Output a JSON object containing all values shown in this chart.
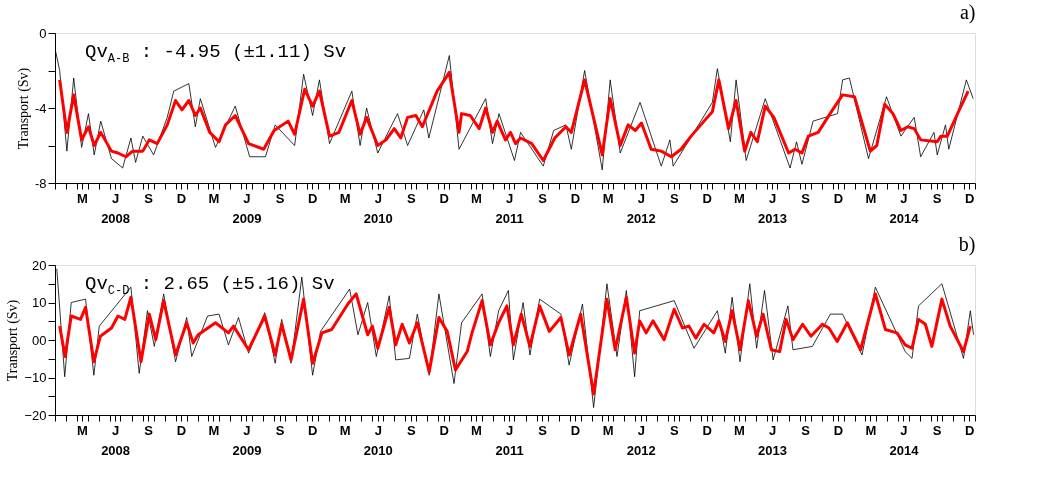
{
  "chart_data": [
    {
      "type": "line",
      "title": "a)",
      "ylabel": "Transport (Sv)",
      "annotations": [
        "Qv$_{A-B}$ : -4.95 (±1.11) Sv"
      ],
      "xlim": [
        "2008-01-01",
        "2015-01-01"
      ],
      "ylim": [
        -8,
        0
      ],
      "yticks": [
        0,
        {
          "value": -2,
          "label": null
        },
        -4,
        {
          "value": -6,
          "label": null
        },
        -8
      ],
      "xticks": [
        {
          "value": "2008-01",
          "label": null
        },
        {
          "value": "2008-02",
          "label": null
        },
        {
          "value": "2008-03",
          "label": null
        },
        {
          "value": "2008-03-16",
          "label": "M"
        },
        {
          "value": "2008-04",
          "label": null
        },
        {
          "value": "2008-05",
          "label": null
        },
        {
          "value": "2008-06",
          "label": null
        },
        {
          "value": "2008-06-16",
          "label": "J\n2008"
        },
        {
          "value": "2008-07",
          "label": null
        },
        {
          "value": "2008-08",
          "label": null
        },
        {
          "value": "2008-09",
          "label": null
        },
        {
          "value": "2008-09-16",
          "label": "S"
        },
        {
          "value": "2008-10",
          "label": null
        },
        {
          "value": "2008-11",
          "label": null
        },
        {
          "value": "2008-12",
          "label": null
        },
        {
          "value": "2008-12-16",
          "label": "D"
        },
        {
          "value": "2009-01",
          "label": null
        },
        {
          "value": "2009-02",
          "label": null
        },
        {
          "value": "2009-03",
          "label": null
        },
        {
          "value": "2009-03-16",
          "label": "M"
        },
        {
          "value": "2009-04",
          "label": null
        },
        {
          "value": "2009-05",
          "label": null
        },
        {
          "value": "2009-06",
          "label": null
        },
        {
          "value": "2009-06-16",
          "label": "J\n2009"
        },
        {
          "value": "2009-07",
          "label": null
        },
        {
          "value": "2009-08",
          "label": null
        },
        {
          "value": "2009-09",
          "label": null
        },
        {
          "value": "2009-09-16",
          "label": "S"
        },
        {
          "value": "2009-10",
          "label": null
        },
        {
          "value": "2009-11",
          "label": null
        },
        {
          "value": "2009-12",
          "label": null
        },
        {
          "value": "2009-12-16",
          "label": "D"
        },
        {
          "value": "2010-01",
          "label": null
        },
        {
          "value": "2010-02",
          "label": null
        },
        {
          "value": "2010-03",
          "label": null
        },
        {
          "value": "2010-03-16",
          "label": "M"
        },
        {
          "value": "2010-04",
          "label": null
        },
        {
          "value": "2010-05",
          "label": null
        },
        {
          "value": "2010-06",
          "label": null
        },
        {
          "value": "2010-06-16",
          "label": "J\n2010"
        },
        {
          "value": "2010-07",
          "label": null
        },
        {
          "value": "2010-08",
          "label": null
        },
        {
          "value": "2010-09",
          "label": null
        },
        {
          "value": "2010-09-16",
          "label": "S"
        },
        {
          "value": "2010-10",
          "label": null
        },
        {
          "value": "2010-11",
          "label": null
        },
        {
          "value": "2010-12",
          "label": null
        },
        {
          "value": "2010-12-16",
          "label": "D"
        },
        {
          "value": "2011-01",
          "label": null
        },
        {
          "value": "2011-02",
          "label": null
        },
        {
          "value": "2011-03",
          "label": null
        },
        {
          "value": "2011-03-16",
          "label": "M"
        },
        {
          "value": "2011-04",
          "label": null
        },
        {
          "value": "2011-05",
          "label": null
        },
        {
          "value": "2011-06",
          "label": null
        },
        {
          "value": "2011-06-16",
          "label": "J\n2011"
        },
        {
          "value": "2011-07",
          "label": null
        },
        {
          "value": "2011-08",
          "label": null
        },
        {
          "value": "2011-09",
          "label": null
        },
        {
          "value": "2011-09-16",
          "label": "S"
        },
        {
          "value": "2011-10",
          "label": null
        },
        {
          "value": "2011-11",
          "label": null
        },
        {
          "value": "2011-12",
          "label": null
        },
        {
          "value": "2011-12-16",
          "label": "D"
        },
        {
          "value": "2012-01",
          "label": null
        },
        {
          "value": "2012-02",
          "label": null
        },
        {
          "value": "2012-03",
          "label": null
        },
        {
          "value": "2012-03-16",
          "label": "M"
        },
        {
          "value": "2012-04",
          "label": null
        },
        {
          "value": "2012-05",
          "label": null
        },
        {
          "value": "2012-06",
          "label": null
        },
        {
          "value": "2012-06-16",
          "label": "J\n2012"
        },
        {
          "value": "2012-07",
          "label": null
        },
        {
          "value": "2012-08",
          "label": null
        },
        {
          "value": "2012-09",
          "label": null
        },
        {
          "value": "2012-09-16",
          "label": "S"
        },
        {
          "value": "2012-10",
          "label": null
        },
        {
          "value": "2012-11",
          "label": null
        },
        {
          "value": "2012-12",
          "label": null
        },
        {
          "value": "2012-12-16",
          "label": "D"
        },
        {
          "value": "2013-01",
          "label": null
        },
        {
          "value": "2013-02",
          "label": null
        },
        {
          "value": "2013-03",
          "label": null
        },
        {
          "value": "2013-03-16",
          "label": "M"
        },
        {
          "value": "2013-04",
          "label": null
        },
        {
          "value": "2013-05",
          "label": null
        },
        {
          "value": "2013-06",
          "label": null
        },
        {
          "value": "2013-06-16",
          "label": "J\n2013"
        },
        {
          "value": "2013-07",
          "label": null
        },
        {
          "value": "2013-08",
          "label": null
        },
        {
          "value": "2013-09",
          "label": null
        },
        {
          "value": "2013-09-16",
          "label": "S"
        },
        {
          "value": "2013-10",
          "label": null
        },
        {
          "value": "2013-11",
          "label": null
        },
        {
          "value": "2013-12",
          "label": null
        },
        {
          "value": "2013-12-16",
          "label": "D"
        },
        {
          "value": "2014-01",
          "label": null
        },
        {
          "value": "2014-02",
          "label": null
        },
        {
          "value": "2014-03",
          "label": null
        },
        {
          "value": "2014-03-16",
          "label": "M"
        },
        {
          "value": "2014-04",
          "label": null
        },
        {
          "value": "2014-05",
          "label": null
        },
        {
          "value": "2014-06",
          "label": null
        },
        {
          "value": "2014-06-16",
          "label": "J\n2014"
        },
        {
          "value": "2014-07",
          "label": null
        },
        {
          "value": "2014-08",
          "label": null
        },
        {
          "value": "2014-09",
          "label": null
        },
        {
          "value": "2014-09-16",
          "label": "S"
        },
        {
          "value": "2014-10",
          "label": null
        },
        {
          "value": "2014-11",
          "label": null
        },
        {
          "value": "2014-12",
          "label": null
        },
        {
          "value": "2014-12-16",
          "label": "D"
        },
        {
          "value": "2015-01",
          "label": null
        }
      ],
      "series": [
        {
          "color": "#000000",
          "x": [
            "2008-01-03",
            "2008-01-14",
            "2008-02-03",
            "2008-02-22",
            "2008-03-15",
            "2008-04-03",
            "2008-04-19",
            "2008-05-07",
            "2008-06-06",
            "2008-07-07",
            "2008-07-30",
            "2008-08-12",
            "2008-09-01",
            "2008-10-01",
            "2008-11-08",
            "2008-11-26",
            "2009-01-07",
            "2009-01-25",
            "2009-02-08",
            "2009-03-22",
            "2009-05-16",
            "2009-06-25",
            "2009-08-08",
            "2009-09-04",
            "2009-10-28",
            "2009-11-22",
            "2009-12-17",
            "2010-01-05",
            "2010-02-02",
            "2010-04-05",
            "2010-04-28",
            "2010-05-16",
            "2010-06-16",
            "2010-08-10",
            "2010-09-07",
            "2010-10-22",
            "2010-11-05",
            "2011-01-01",
            "2011-01-28",
            "2011-04-12",
            "2011-05-01",
            "2011-05-19",
            "2011-07-01",
            "2011-07-18",
            "2011-09-19",
            "2011-10-18",
            "2011-11-21",
            "2011-12-06",
            "2012-01-12",
            "2012-03-01",
            "2012-03-23",
            "2012-04-20",
            "2012-06-14",
            "2012-08-12",
            "2012-09-05",
            "2012-09-14",
            "2013-01-01",
            "2013-01-15",
            "2013-02-20",
            "2013-03-08",
            "2013-04-05",
            "2013-05-28",
            "2013-08-05",
            "2013-08-23",
            "2013-09-07",
            "2013-10-08",
            "2013-12-15",
            "2013-12-29",
            "2014-01-17",
            "2014-03-11",
            "2014-04-30",
            "2014-06-09",
            "2014-07-16",
            "2014-08-03",
            "2014-09-09",
            "2014-09-18",
            "2014-10-11",
            "2014-10-20",
            "2014-12-08",
            "2014-12-27"
          ],
          "values": [
            -1.0,
            -2.0,
            -6.3,
            -2.4,
            -6.1,
            -4.3,
            -6.5,
            -4.7,
            -6.7,
            -7.2,
            -5.6,
            -6.9,
            -5.5,
            -6.5,
            -4.5,
            -3.1,
            -2.7,
            -5.0,
            -3.5,
            -6.1,
            -3.9,
            -6.6,
            -6.6,
            -4.9,
            -6.0,
            -2.2,
            -4.4,
            -2.5,
            -5.9,
            -3.1,
            -6.0,
            -4.0,
            -6.4,
            -4.3,
            -6.0,
            -4.1,
            -5.6,
            -1.2,
            -6.2,
            -3.5,
            -5.9,
            -4.3,
            -6.8,
            -5.3,
            -7.1,
            -5.2,
            -4.9,
            -6.2,
            -2.0,
            -7.3,
            -2.5,
            -6.4,
            -3.7,
            -7.1,
            -5.7,
            -7.1,
            -3.7,
            -1.9,
            -5.8,
            -2.5,
            -6.8,
            -3.5,
            -7.2,
            -5.8,
            -7.0,
            -4.7,
            -4.3,
            -2.5,
            -2.4,
            -6.7,
            -3.4,
            -5.5,
            -4.5,
            -6.6,
            -5.3,
            -6.5,
            -4.9,
            -6.2,
            -2.5,
            -3.5
          ]
        },
        {
          "color": "#ff0000",
          "x": [
            "2008-01-14",
            "2008-02-03",
            "2008-02-22",
            "2008-03-15",
            "2008-04-03",
            "2008-04-19",
            "2008-05-07",
            "2008-06-06",
            "2008-06-24",
            "2008-07-16",
            "2008-08-04",
            "2008-09-01",
            "2008-09-19",
            "2008-10-11",
            "2008-11-08",
            "2008-12-01",
            "2008-12-19",
            "2009-01-07",
            "2009-01-25",
            "2009-02-08",
            "2009-03-06",
            "2009-04-01",
            "2009-04-19",
            "2009-05-16",
            "2009-06-22",
            "2009-08-03",
            "2009-09-01",
            "2009-10-10",
            "2009-10-28",
            "2009-11-25",
            "2009-12-17",
            "2010-01-05",
            "2010-02-02",
            "2010-02-28",
            "2010-04-05",
            "2010-04-28",
            "2010-05-16",
            "2010-06-16",
            "2010-07-09",
            "2010-08-01",
            "2010-08-19",
            "2010-09-07",
            "2010-09-30",
            "2010-10-18",
            "2010-11-28",
            "2011-01-01",
            "2011-01-28",
            "2011-02-04",
            "2011-02-28",
            "2011-03-25",
            "2011-04-12",
            "2011-05-01",
            "2011-05-14",
            "2011-06-06",
            "2011-06-20",
            "2011-07-04",
            "2011-07-18",
            "2011-08-18",
            "2011-09-19",
            "2011-10-21",
            "2011-11-21",
            "2011-12-06",
            "2012-01-12",
            "2012-03-01",
            "2012-03-23",
            "2012-04-20",
            "2012-05-12",
            "2012-06-01",
            "2012-06-18",
            "2012-07-15",
            "2012-08-12",
            "2012-09-09",
            "2012-10-06",
            "2012-11-03",
            "2012-12-09",
            "2013-01-01",
            "2013-01-19",
            "2013-02-15",
            "2013-03-08",
            "2013-04-01",
            "2013-04-18",
            "2013-05-06",
            "2013-05-28",
            "2013-06-21",
            "2013-08-01",
            "2013-08-19",
            "2013-09-07",
            "2013-09-25",
            "2013-10-22",
            "2013-12-01",
            "2013-12-29",
            "2014-01-31",
            "2014-03-16",
            "2014-04-03",
            "2014-04-25",
            "2014-05-18",
            "2014-06-09",
            "2014-06-28",
            "2014-07-16",
            "2014-08-03",
            "2014-09-18",
            "2014-09-28",
            "2014-10-16",
            "2014-11-16",
            "2014-12-13"
          ],
          "values": [
            -2.5,
            -5.3,
            -3.3,
            -5.7,
            -5.0,
            -6.0,
            -5.3,
            -6.3,
            -6.4,
            -6.6,
            -6.3,
            -6.3,
            -5.7,
            -5.9,
            -4.9,
            -3.6,
            -4.1,
            -3.6,
            -4.4,
            -4.0,
            -5.3,
            -5.8,
            -4.9,
            -4.4,
            -5.9,
            -6.2,
            -5.2,
            -4.7,
            -5.4,
            -3.0,
            -3.9,
            -3.1,
            -5.5,
            -5.3,
            -3.6,
            -5.4,
            -4.5,
            -6.0,
            -5.7,
            -5.1,
            -5.6,
            -4.5,
            -4.4,
            -5.0,
            -3.1,
            -2.1,
            -5.3,
            -4.3,
            -4.4,
            -5.1,
            -4.0,
            -5.3,
            -4.7,
            -5.7,
            -5.3,
            -5.9,
            -5.6,
            -5.9,
            -6.8,
            -5.6,
            -5.0,
            -5.3,
            -2.5,
            -6.5,
            -3.5,
            -6.0,
            -4.9,
            -5.2,
            -4.8,
            -6.2,
            -6.3,
            -6.6,
            -6.2,
            -5.5,
            -4.7,
            -4.2,
            -2.5,
            -5.1,
            -3.6,
            -6.3,
            -5.3,
            -5.8,
            -3.9,
            -4.5,
            -6.4,
            -6.2,
            -6.4,
            -5.5,
            -5.3,
            -4.1,
            -3.3,
            -3.4,
            -6.3,
            -6.0,
            -3.8,
            -4.3,
            -5.2,
            -5.0,
            -5.1,
            -5.7,
            -5.8,
            -5.5,
            -5.5,
            -4.2,
            -3.1
          ]
        }
      ]
    },
    {
      "type": "line",
      "title": "b)",
      "ylabel": "Transport (Sv)",
      "annotations": [
        "Qv$_{C-D}$ : 2.65 (±5.16) Sv"
      ],
      "xlim": [
        "2008-01-01",
        "2015-01-01"
      ],
      "ylim": [
        -20,
        20
      ],
      "yticks": [
        {
          "value": -20,
          "label": "−20"
        },
        {
          "value": -15,
          "label": null
        },
        {
          "value": -10,
          "label": "−10"
        },
        {
          "value": -5,
          "label": null
        },
        {
          "value": 0,
          "label": "00"
        },
        {
          "value": 5,
          "label": null
        },
        10,
        {
          "value": 15,
          "label": null
        },
        20
      ],
      "xticks": [
        {
          "value": "2008-01",
          "label": null
        },
        {
          "value": "2008-02",
          "label": null
        },
        {
          "value": "2008-03",
          "label": null
        },
        {
          "value": "2008-03-16",
          "label": "M"
        },
        {
          "value": "2008-04",
          "label": null
        },
        {
          "value": "2008-05",
          "label": null
        },
        {
          "value": "2008-06",
          "label": null
        },
        {
          "value": "2008-06-16",
          "label": "J\n2008"
        },
        {
          "value": "2008-07",
          "label": null
        },
        {
          "value": "2008-08",
          "label": null
        },
        {
          "value": "2008-09",
          "label": null
        },
        {
          "value": "2008-09-16",
          "label": "S"
        },
        {
          "value": "2008-10",
          "label": null
        },
        {
          "value": "2008-11",
          "label": null
        },
        {
          "value": "2008-12",
          "label": null
        },
        {
          "value": "2008-12-16",
          "label": "D"
        },
        {
          "value": "2009-01",
          "label": null
        },
        {
          "value": "2009-02",
          "label": null
        },
        {
          "value": "2009-03",
          "label": null
        },
        {
          "value": "2009-03-16",
          "label": "M"
        },
        {
          "value": "2009-04",
          "label": null
        },
        {
          "value": "2009-05",
          "label": null
        },
        {
          "value": "2009-06",
          "label": null
        },
        {
          "value": "2009-06-16",
          "label": "J\n2009"
        },
        {
          "value": "2009-07",
          "label": null
        },
        {
          "value": "2009-08",
          "label": null
        },
        {
          "value": "2009-09",
          "label": null
        },
        {
          "value": "2009-09-16",
          "label": "S"
        },
        {
          "value": "2009-10",
          "label": null
        },
        {
          "value": "2009-11",
          "label": null
        },
        {
          "value": "2009-12",
          "label": null
        },
        {
          "value": "2009-12-16",
          "label": "D"
        },
        {
          "value": "2010-01",
          "label": null
        },
        {
          "value": "2010-02",
          "label": null
        },
        {
          "value": "2010-03",
          "label": null
        },
        {
          "value": "2010-03-16",
          "label": "M"
        },
        {
          "value": "2010-04",
          "label": null
        },
        {
          "value": "2010-05",
          "label": null
        },
        {
          "value": "2010-06",
          "label": null
        },
        {
          "value": "2010-06-16",
          "label": "J\n2010"
        },
        {
          "value": "2010-07",
          "label": null
        },
        {
          "value": "2010-08",
          "label": null
        },
        {
          "value": "2010-09",
          "label": null
        },
        {
          "value": "2010-09-16",
          "label": "S"
        },
        {
          "value": "2010-10",
          "label": null
        },
        {
          "value": "2010-11",
          "label": null
        },
        {
          "value": "2010-12",
          "label": null
        },
        {
          "value": "2010-12-16",
          "label": "D"
        },
        {
          "value": "2011-01",
          "label": null
        },
        {
          "value": "2011-02",
          "label": null
        },
        {
          "value": "2011-03",
          "label": null
        },
        {
          "value": "2011-03-16",
          "label": "M"
        },
        {
          "value": "2011-04",
          "label": null
        },
        {
          "value": "2011-05",
          "label": null
        },
        {
          "value": "2011-06",
          "label": null
        },
        {
          "value": "2011-06-16",
          "label": "J\n2011"
        },
        {
          "value": "2011-07",
          "label": null
        },
        {
          "value": "2011-08",
          "label": null
        },
        {
          "value": "2011-09",
          "label": null
        },
        {
          "value": "2011-09-16",
          "label": "S"
        },
        {
          "value": "2011-10",
          "label": null
        },
        {
          "value": "2011-11",
          "label": null
        },
        {
          "value": "2011-12",
          "label": null
        },
        {
          "value": "2011-12-16",
          "label": "D"
        },
        {
          "value": "2012-01",
          "label": null
        },
        {
          "value": "2012-02",
          "label": null
        },
        {
          "value": "2012-03",
          "label": null
        },
        {
          "value": "2012-03-16",
          "label": "M"
        },
        {
          "value": "2012-04",
          "label": null
        },
        {
          "value": "2012-05",
          "label": null
        },
        {
          "value": "2012-06",
          "label": null
        },
        {
          "value": "2012-06-16",
          "label": "J\n2012"
        },
        {
          "value": "2012-07",
          "label": null
        },
        {
          "value": "2012-08",
          "label": null
        },
        {
          "value": "2012-09",
          "label": null
        },
        {
          "value": "2012-09-16",
          "label": "S"
        },
        {
          "value": "2012-10",
          "label": null
        },
        {
          "value": "2012-11",
          "label": null
        },
        {
          "value": "2012-12",
          "label": null
        },
        {
          "value": "2012-12-16",
          "label": "D"
        },
        {
          "value": "2013-01",
          "label": null
        },
        {
          "value": "2013-02",
          "label": null
        },
        {
          "value": "2013-03",
          "label": null
        },
        {
          "value": "2013-03-16",
          "label": "M"
        },
        {
          "value": "2013-04",
          "label": null
        },
        {
          "value": "2013-05",
          "label": null
        },
        {
          "value": "2013-06",
          "label": null
        },
        {
          "value": "2013-06-16",
          "label": "J\n2013"
        },
        {
          "value": "2013-07",
          "label": null
        },
        {
          "value": "2013-08",
          "label": null
        },
        {
          "value": "2013-09",
          "label": null
        },
        {
          "value": "2013-09-16",
          "label": "S"
        },
        {
          "value": "2013-10",
          "label": null
        },
        {
          "value": "2013-11",
          "label": null
        },
        {
          "value": "2013-12",
          "label": null
        },
        {
          "value": "2013-12-16",
          "label": "D"
        },
        {
          "value": "2014-01",
          "label": null
        },
        {
          "value": "2014-02",
          "label": null
        },
        {
          "value": "2014-03",
          "label": null
        },
        {
          "value": "2014-03-16",
          "label": "M"
        },
        {
          "value": "2014-04",
          "label": null
        },
        {
          "value": "2014-05",
          "label": null
        },
        {
          "value": "2014-06",
          "label": null
        },
        {
          "value": "2014-06-16",
          "label": "J\n2014"
        },
        {
          "value": "2014-07",
          "label": null
        },
        {
          "value": "2014-08",
          "label": null
        },
        {
          "value": "2014-09",
          "label": null
        },
        {
          "value": "2014-09-16",
          "label": "S"
        },
        {
          "value": "2014-10",
          "label": null
        },
        {
          "value": "2014-11",
          "label": null
        },
        {
          "value": "2014-12",
          "label": null
        },
        {
          "value": "2014-12-16",
          "label": "D"
        },
        {
          "value": "2015-01",
          "label": null
        }
      ],
      "series": [
        {
          "color": "#000000",
          "x": [
            "2008-01-06",
            "2008-01-28",
            "2008-02-15",
            "2008-03-26",
            "2008-04-18",
            "2008-05-03",
            "2008-07-30",
            "2008-08-22",
            "2008-09-14",
            "2008-10-03",
            "2008-10-29",
            "2008-12-01",
            "2009-01-01",
            "2009-01-15",
            "2009-02-28",
            "2009-04-01",
            "2009-04-27",
            "2009-05-25",
            "2009-06-22",
            "2009-08-06",
            "2009-09-04",
            "2009-09-22",
            "2009-10-18",
            "2009-11-17",
            "2009-12-17",
            "2010-01-08",
            "2010-03-30",
            "2010-04-22",
            "2010-05-19",
            "2010-06-12",
            "2010-07-18",
            "2010-08-05",
            "2010-09-12",
            "2010-10-04",
            "2010-11-06",
            "2010-12-03",
            "2011-01-14",
            "2011-02-04",
            "2011-04-02",
            "2011-04-25",
            "2011-05-18",
            "2011-06-14",
            "2011-06-28",
            "2011-07-25",
            "2011-08-13",
            "2011-09-09",
            "2011-11-07",
            "2011-11-30",
            "2012-01-06",
            "2012-02-06",
            "2012-03-14",
            "2012-04-11",
            "2012-05-07",
            "2012-05-30",
            "2012-06-13",
            "2012-09-17",
            "2012-11-11",
            "2013-01-15",
            "2013-02-06",
            "2013-02-25",
            "2013-03-19",
            "2013-04-15",
            "2013-05-04",
            "2013-05-26",
            "2013-06-19",
            "2013-07-30",
            "2013-08-13",
            "2013-10-06",
            "2013-11-25",
            "2013-12-29",
            "2014-02-21",
            "2014-03-30",
            "2014-06-21",
            "2014-07-10",
            "2014-07-28",
            "2014-10-01",
            "2014-11-30",
            "2014-12-19",
            "2014-12-28"
          ],
          "values": [
            19.0,
            -9.8,
            10.0,
            10.9,
            -9.4,
            3.7,
            14.1,
            -8.9,
            7.8,
            -1.7,
            12.3,
            -5.8,
            6.0,
            -4.4,
            6.4,
            6.9,
            -1.3,
            6.0,
            -3.5,
            7.3,
            -6.2,
            5.5,
            -6.2,
            16.8,
            -9.4,
            2.3,
            13.6,
            1.4,
            10.0,
            -4.4,
            11.8,
            -5.3,
            -4.9,
            6.9,
            -9.4,
            12.3,
            -11.6,
            4.6,
            12.3,
            -4.4,
            7.8,
            13.2,
            -5.3,
            10.0,
            -4.0,
            10.9,
            6.9,
            -6.7,
            9.6,
            -18.0,
            15.0,
            -4.4,
            13.2,
            -9.8,
            7.8,
            10.5,
            -2.2,
            7.8,
            -3.5,
            11.4,
            -5.8,
            15.0,
            -2.2,
            13.2,
            -5.3,
            9.1,
            -2.6,
            -1.7,
            6.9,
            6.9,
            -4.0,
            14.1,
            -3.1,
            -4.9,
            9.1,
            15.0,
            -4.9,
            7.8,
            1.4
          ]
        },
        {
          "color": "#ff0000",
          "x": [
            "2008-01-14",
            "2008-01-29",
            "2008-02-15",
            "2008-03-12",
            "2008-03-26",
            "2008-04-18",
            "2008-05-06",
            "2008-06-06",
            "2008-06-24",
            "2008-07-13",
            "2008-07-30",
            "2008-08-27",
            "2008-09-19",
            "2008-10-07",
            "2008-10-29",
            "2008-12-01",
            "2009-01-01",
            "2009-01-19",
            "2009-02-02",
            "2009-03-22",
            "2009-04-27",
            "2009-05-11",
            "2009-06-22",
            "2009-08-06",
            "2009-09-04",
            "2009-09-22",
            "2009-10-18",
            "2009-11-22",
            "2009-12-17",
            "2010-01-12",
            "2010-02-08",
            "2010-03-25",
            "2010-04-17",
            "2010-05-19",
            "2010-06-01",
            "2010-06-16",
            "2010-07-18",
            "2010-08-05",
            "2010-08-23",
            "2010-09-12",
            "2010-10-04",
            "2010-11-06",
            "2010-12-03",
            "2010-12-26",
            "2011-01-18",
            "2011-02-20",
            "2011-03-05",
            "2011-04-02",
            "2011-04-25",
            "2011-05-18",
            "2011-06-10",
            "2011-06-28",
            "2011-07-20",
            "2011-08-13",
            "2011-09-09",
            "2011-10-06",
            "2011-11-07",
            "2011-11-30",
            "2012-01-01",
            "2012-02-06",
            "2012-03-14",
            "2012-04-06",
            "2012-05-07",
            "2012-05-30",
            "2012-06-13",
            "2012-07-01",
            "2012-07-20",
            "2012-08-20",
            "2012-09-17",
            "2012-10-10",
            "2012-10-28",
            "2012-11-16",
            "2012-12-09",
            "2013-01-05",
            "2013-01-19",
            "2013-02-06",
            "2013-02-25",
            "2013-03-19",
            "2013-04-11",
            "2013-05-04",
            "2013-05-22",
            "2013-06-14",
            "2013-07-07",
            "2013-07-25",
            "2013-08-13",
            "2013-09-09",
            "2013-10-02",
            "2013-11-03",
            "2013-11-21",
            "2013-12-14",
            "2014-01-11",
            "2014-02-17",
            "2014-03-30",
            "2014-04-27",
            "2014-05-29",
            "2014-06-21",
            "2014-07-10",
            "2014-07-28",
            "2014-08-16",
            "2014-09-03",
            "2014-10-01",
            "2014-10-24",
            "2014-11-30",
            "2014-12-19"
          ],
          "values": [
            3.7,
            -4.4,
            6.4,
            5.5,
            8.7,
            -5.8,
            1.0,
            3.2,
            6.4,
            5.5,
            11.4,
            -5.8,
            6.9,
            0.1,
            10.5,
            -4.0,
            4.6,
            -0.8,
            1.4,
            4.6,
            1.9,
            3.7,
            -2.6,
            6.4,
            -4.0,
            4.2,
            -5.3,
            10.9,
            -6.2,
            1.9,
            2.8,
            9.6,
            12.3,
            1.4,
            3.7,
            -2.2,
            8.7,
            -1.3,
            4.2,
            -0.8,
            4.6,
            -8.5,
            6.0,
            2.3,
            -8.0,
            -3.0,
            1.9,
            10.5,
            -1.3,
            4.6,
            9.1,
            -1.3,
            6.9,
            -1.7,
            9.1,
            2.3,
            6.0,
            -4.0,
            6.9,
            -14.4,
            10.9,
            -2.6,
            11.4,
            -3.5,
            5.1,
            1.9,
            5.1,
            0.1,
            8.2,
            3.2,
            3.7,
            0.5,
            4.2,
            1.9,
            5.1,
            -0.4,
            7.8,
            -2.6,
            10.5,
            1.0,
            6.9,
            -2.6,
            -3.1,
            5.5,
            0.1,
            4.2,
            1.0,
            4.2,
            3.2,
            -0.4,
            4.6,
            -2.6,
            12.3,
            2.8,
            1.9,
            -1.3,
            -2.2,
            5.5,
            4.2,
            -1.7,
            10.9,
            3.7,
            -3.1,
            3.7
          ]
        }
      ]
    }
  ]
}
